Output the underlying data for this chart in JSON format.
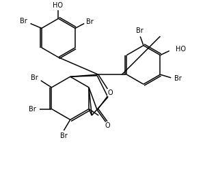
{
  "bg_color": "#ffffff",
  "line_color": "#000000",
  "text_color": "#000000",
  "font_size": 7.0,
  "line_width": 1.1,
  "figsize": [
    3.19,
    2.87
  ],
  "dpi": 100,
  "xlim": [
    0,
    10
  ],
  "ylim": [
    0,
    9
  ]
}
